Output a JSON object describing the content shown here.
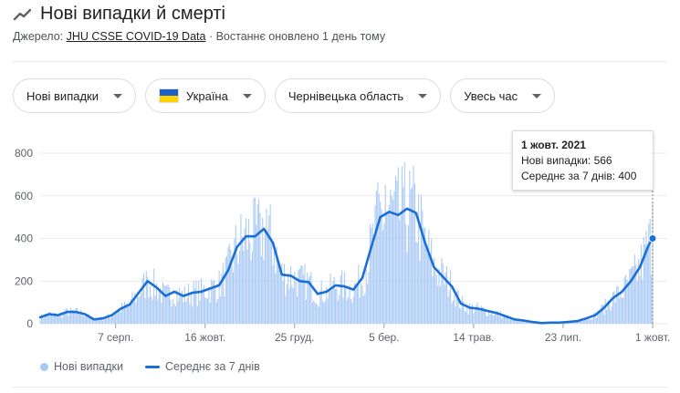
{
  "header": {
    "title": "Нові випадки й смерті",
    "source_label": "Джерело:",
    "source_link": "JHU CSSE COVID-19 Data",
    "updated": "· Востаннє оновлено 1 день тому"
  },
  "filters": {
    "metric": "Нові випадки",
    "country": "Україна",
    "region": "Чернівецька область",
    "period": "Увесь час"
  },
  "colors": {
    "bars": "#a9c9f5",
    "line": "#1a6fd6",
    "flag_top": "#1f5fc9",
    "flag_bottom": "#ffd400"
  },
  "tooltip": {
    "date": "1 жовт. 2021",
    "cases": "Нові випадки: 566",
    "avg": "Середнє за 7 днів: 400"
  },
  "legend": {
    "bars": "Нові випадки",
    "line": "Середнє за 7 днів"
  },
  "chart_data": {
    "type": "bar",
    "x_axis": {
      "type": "date",
      "range": [
        "2020-06-09",
        "2021-10-01"
      ],
      "ticks": [
        {
          "date": "2020-08-07",
          "label": "7 серп."
        },
        {
          "date": "2020-10-16",
          "label": "16 жовт."
        },
        {
          "date": "2020-12-25",
          "label": "25 груд."
        },
        {
          "date": "2021-03-05",
          "label": "5 бер."
        },
        {
          "date": "2021-05-14",
          "label": "14 трав."
        },
        {
          "date": "2021-07-23",
          "label": "23 лип."
        },
        {
          "date": "2021-10-01",
          "label": "1 жовт."
        }
      ]
    },
    "y_axis": {
      "ticks": [
        0,
        200,
        400,
        600,
        800
      ],
      "range": [
        0,
        800
      ]
    },
    "grid": true,
    "series": [
      {
        "name": "Середнє за 7 днів",
        "type": "line",
        "points": [
          [
            "2020-06-09",
            30
          ],
          [
            "2020-06-16",
            45
          ],
          [
            "2020-06-23",
            40
          ],
          [
            "2020-06-30",
            55
          ],
          [
            "2020-07-07",
            55
          ],
          [
            "2020-07-14",
            45
          ],
          [
            "2020-07-21",
            20
          ],
          [
            "2020-07-28",
            25
          ],
          [
            "2020-08-04",
            40
          ],
          [
            "2020-08-11",
            70
          ],
          [
            "2020-08-18",
            90
          ],
          [
            "2020-08-25",
            145
          ],
          [
            "2020-09-01",
            200
          ],
          [
            "2020-09-08",
            170
          ],
          [
            "2020-09-15",
            130
          ],
          [
            "2020-09-22",
            150
          ],
          [
            "2020-09-29",
            130
          ],
          [
            "2020-10-06",
            145
          ],
          [
            "2020-10-13",
            150
          ],
          [
            "2020-10-20",
            165
          ],
          [
            "2020-10-27",
            180
          ],
          [
            "2020-11-03",
            250
          ],
          [
            "2020-11-10",
            360
          ],
          [
            "2020-11-17",
            410
          ],
          [
            "2020-11-24",
            410
          ],
          [
            "2020-12-01",
            445
          ],
          [
            "2020-12-08",
            380
          ],
          [
            "2020-12-15",
            230
          ],
          [
            "2020-12-22",
            225
          ],
          [
            "2020-12-29",
            200
          ],
          [
            "2021-01-05",
            195
          ],
          [
            "2021-01-12",
            140
          ],
          [
            "2021-01-19",
            150
          ],
          [
            "2021-01-26",
            180
          ],
          [
            "2021-02-02",
            175
          ],
          [
            "2021-02-09",
            160
          ],
          [
            "2021-02-16",
            215
          ],
          [
            "2021-02-23",
            360
          ],
          [
            "2021-03-02",
            500
          ],
          [
            "2021-03-09",
            525
          ],
          [
            "2021-03-16",
            510
          ],
          [
            "2021-03-23",
            540
          ],
          [
            "2021-03-30",
            520
          ],
          [
            "2021-04-06",
            380
          ],
          [
            "2021-04-13",
            265
          ],
          [
            "2021-04-20",
            220
          ],
          [
            "2021-04-27",
            175
          ],
          [
            "2021-05-04",
            95
          ],
          [
            "2021-05-11",
            75
          ],
          [
            "2021-05-18",
            70
          ],
          [
            "2021-05-25",
            60
          ],
          [
            "2021-06-01",
            50
          ],
          [
            "2021-06-08",
            35
          ],
          [
            "2021-06-15",
            20
          ],
          [
            "2021-06-22",
            15
          ],
          [
            "2021-06-29",
            8
          ],
          [
            "2021-07-06",
            3
          ],
          [
            "2021-07-13",
            5
          ],
          [
            "2021-07-20",
            5
          ],
          [
            "2021-07-27",
            8
          ],
          [
            "2021-08-03",
            12
          ],
          [
            "2021-08-10",
            25
          ],
          [
            "2021-08-17",
            40
          ],
          [
            "2021-08-24",
            75
          ],
          [
            "2021-08-31",
            120
          ],
          [
            "2021-09-07",
            150
          ],
          [
            "2021-09-14",
            200
          ],
          [
            "2021-09-21",
            265
          ],
          [
            "2021-09-28",
            370
          ],
          [
            "2021-10-01",
            400
          ]
        ]
      },
      {
        "name": "Нові випадки",
        "type": "bar",
        "daily_extremes": [
          [
            "2020-09-01",
            220
          ],
          [
            "2020-11-28",
            520
          ],
          [
            "2020-12-03",
            540
          ],
          [
            "2021-02-28",
            665
          ],
          [
            "2021-03-06",
            650
          ],
          [
            "2021-03-20",
            640
          ],
          [
            "2021-10-01",
            566
          ]
        ]
      }
    ]
  }
}
